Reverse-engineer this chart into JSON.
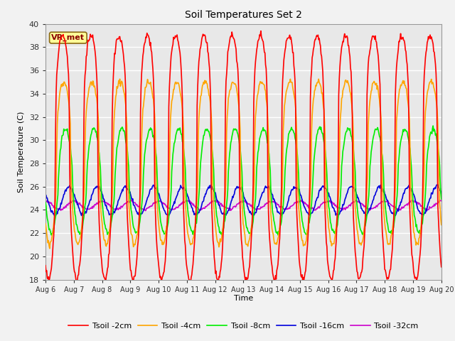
{
  "title": "Soil Temperatures Set 2",
  "xlabel": "Time",
  "ylabel": "Soil Temperature (C)",
  "ylim": [
    18,
    40
  ],
  "xlim": [
    0,
    14
  ],
  "annotation": "VR_met",
  "series": {
    "Tsoil -2cm": {
      "color": "#FF0000",
      "linewidth": 1.2
    },
    "Tsoil -4cm": {
      "color": "#FFA500",
      "linewidth": 1.2
    },
    "Tsoil -8cm": {
      "color": "#00EE00",
      "linewidth": 1.2
    },
    "Tsoil -16cm": {
      "color": "#0000DD",
      "linewidth": 1.2
    },
    "Tsoil -32cm": {
      "color": "#CC00CC",
      "linewidth": 1.2
    }
  },
  "xtick_labels": [
    "Aug 6",
    "Aug 7",
    "Aug 8",
    "Aug 9",
    "Aug 10",
    "Aug 11",
    "Aug 12",
    "Aug 13",
    "Aug 14",
    "Aug 15",
    "Aug 16",
    "Aug 17",
    "Aug 18",
    "Aug 19",
    "Aug 20"
  ],
  "xtick_positions": [
    0,
    1,
    2,
    3,
    4,
    5,
    6,
    7,
    8,
    9,
    10,
    11,
    12,
    13,
    14
  ],
  "ytick_labels": [
    "18",
    "20",
    "22",
    "24",
    "26",
    "28",
    "30",
    "32",
    "34",
    "36",
    "38",
    "40"
  ],
  "ytick_positions": [
    18,
    20,
    22,
    24,
    26,
    28,
    30,
    32,
    34,
    36,
    38,
    40
  ],
  "plot_bg_color": "#E8E8E8",
  "fig_bg_color": "#F2F2F2",
  "grid_color": "#FFFFFF",
  "num_days": 14,
  "points_per_day": 48
}
